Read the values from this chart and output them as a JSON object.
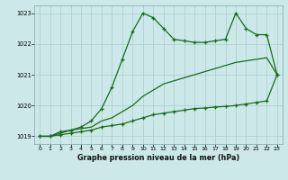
{
  "title": "Graphe pression niveau de la mer (hPa)",
  "bg_color": "#cce8e8",
  "grid_color": "#aacccc",
  "line_color": "#1a6b1a",
  "xlim": [
    -0.5,
    23.5
  ],
  "ylim": [
    1018.75,
    1023.25
  ],
  "yticks": [
    1019,
    1020,
    1021,
    1022,
    1023
  ],
  "xticks": [
    0,
    1,
    2,
    3,
    4,
    5,
    6,
    7,
    8,
    9,
    10,
    11,
    12,
    13,
    14,
    15,
    16,
    17,
    18,
    19,
    20,
    21,
    22,
    23
  ],
  "line1_x": [
    0,
    1,
    2,
    3,
    4,
    5,
    6,
    7,
    8,
    9,
    10,
    11,
    12,
    13,
    14,
    15,
    16,
    17,
    18,
    19,
    20,
    21,
    22,
    23
  ],
  "line1_y": [
    1019.0,
    1019.0,
    1019.05,
    1019.1,
    1019.15,
    1019.2,
    1019.3,
    1019.35,
    1019.4,
    1019.5,
    1019.6,
    1019.7,
    1019.75,
    1019.8,
    1019.85,
    1019.9,
    1019.92,
    1019.95,
    1019.97,
    1020.0,
    1020.05,
    1020.1,
    1020.15,
    1021.0
  ],
  "line2_x": [
    0,
    1,
    2,
    3,
    4,
    5,
    6,
    7,
    8,
    9,
    10,
    11,
    12,
    13,
    14,
    15,
    16,
    17,
    18,
    19,
    20,
    21,
    22,
    23
  ],
  "line2_y": [
    1019.0,
    1019.0,
    1019.15,
    1019.2,
    1019.3,
    1019.5,
    1019.9,
    1020.6,
    1021.5,
    1022.4,
    1023.0,
    1022.85,
    1022.5,
    1022.15,
    1022.1,
    1022.05,
    1022.05,
    1022.1,
    1022.15,
    1023.0,
    1022.5,
    1022.3,
    1022.3,
    1021.0
  ],
  "line3_x": [
    0,
    1,
    2,
    3,
    4,
    5,
    6,
    7,
    8,
    9,
    10,
    11,
    12,
    13,
    14,
    15,
    16,
    17,
    18,
    19,
    20,
    21,
    22,
    23
  ],
  "line3_y": [
    1019.0,
    1019.0,
    1019.1,
    1019.2,
    1019.25,
    1019.3,
    1019.5,
    1019.6,
    1019.8,
    1020.0,
    1020.3,
    1020.5,
    1020.7,
    1020.8,
    1020.9,
    1021.0,
    1021.1,
    1021.2,
    1021.3,
    1021.4,
    1021.45,
    1021.5,
    1021.55,
    1021.0
  ]
}
